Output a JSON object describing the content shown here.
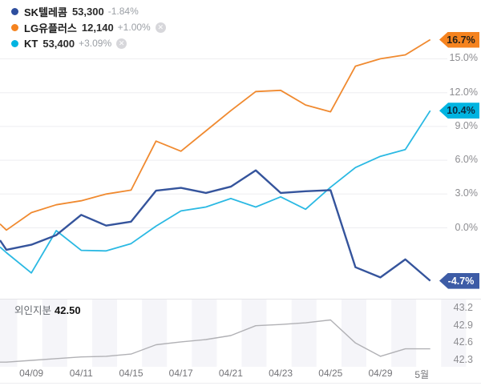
{
  "legend": {
    "items": [
      {
        "name": "SK텔레콤",
        "price": "53,300",
        "change": "-1.84%",
        "color": "#2e4e9e",
        "closable": false
      },
      {
        "name": "LG유플러스",
        "price": "12,140",
        "change": "+1.00%",
        "color": "#f5831f",
        "closable": true
      },
      {
        "name": "KT",
        "price": "53,400",
        "change": "+3.09%",
        "color": "#00b4e1",
        "closable": true
      }
    ],
    "close_icon": "✕"
  },
  "main_chart": {
    "y_ticks": [
      {
        "label": "15.0%",
        "value": 15
      },
      {
        "label": "12.0%",
        "value": 12
      },
      {
        "label": "9.0%",
        "value": 9
      },
      {
        "label": "6.0%",
        "value": 6
      },
      {
        "label": "3.0%",
        "value": 3
      },
      {
        "label": "0.0%",
        "value": 0
      }
    ],
    "badges": [
      {
        "label": "16.7%",
        "value": 16.7,
        "bg": "#f5831f",
        "fg": "#26211a"
      },
      {
        "label": "10.4%",
        "value": 10.4,
        "bg": "#00b4e1",
        "fg": "#0e2b40"
      },
      {
        "label": "-4.7%",
        "value": -4.7,
        "bg": "#3d5ca6",
        "fg": "#ffffff"
      }
    ]
  },
  "x_axis": {
    "labels": [
      "04/09",
      "04/11",
      "04/15",
      "04/17",
      "04/21",
      "04/23",
      "04/25",
      "04/29",
      "5월"
    ]
  },
  "sub_chart": {
    "label": "외인지분",
    "value": "42.50",
    "line_color": "#b1b1b5",
    "y_ticks": [
      {
        "label": "43.2",
        "value": 43.2
      },
      {
        "label": "42.9",
        "value": 42.9
      },
      {
        "label": "42.6",
        "value": 42.6
      },
      {
        "label": "42.3",
        "value": 42.3
      }
    ]
  },
  "chart_data": [
    {
      "type": "line",
      "name": "SK텔레콤",
      "unit": "%",
      "color": "#35549c",
      "width": 2.4,
      "edge_value": -1.1,
      "values": [
        -1.95,
        -1.5,
        -0.65,
        1.15,
        0.2,
        0.55,
        3.3,
        3.55,
        3.1,
        3.65,
        5.1,
        3.1,
        3.25,
        3.35,
        -3.5,
        -4.4,
        -2.8,
        -4.7
      ],
      "end_label": "-4.7%"
    },
    {
      "type": "line",
      "name": "LG유플러스",
      "unit": "%",
      "color": "#f08a30",
      "width": 1.8,
      "edge_value": 0.35,
      "values": [
        -0.2,
        1.35,
        2.05,
        2.4,
        3.0,
        3.35,
        7.7,
        6.8,
        8.6,
        10.4,
        12.1,
        12.2,
        10.9,
        10.3,
        14.35,
        15.0,
        15.35,
        16.7
      ],
      "end_label": "16.7%"
    },
    {
      "type": "line",
      "name": "KT",
      "unit": "%",
      "color": "#2bb9e3",
      "width": 1.8,
      "edge_value": -1.7,
      "values": [
        -2.2,
        -4.0,
        -0.25,
        -2.0,
        -2.05,
        -1.4,
        0.15,
        1.5,
        1.85,
        2.6,
        1.85,
        2.75,
        1.65,
        3.6,
        5.35,
        6.35,
        6.95,
        10.4
      ],
      "end_label": "10.4%"
    },
    {
      "type": "line",
      "name": "외인지분",
      "unit": "",
      "color": "#b1b1b5",
      "width": 1.4,
      "edge_value": 42.27,
      "values": [
        42.27,
        42.3,
        42.33,
        42.36,
        42.37,
        42.41,
        42.57,
        42.62,
        42.66,
        42.73,
        42.9,
        42.92,
        42.95,
        43.0,
        42.6,
        42.37,
        42.5,
        42.5
      ],
      "end_label": "42.50"
    }
  ],
  "style": {
    "grid_color": "#ededf0",
    "stripe_color": "#f5f5f9",
    "divider_color": "#e4e4e8"
  }
}
